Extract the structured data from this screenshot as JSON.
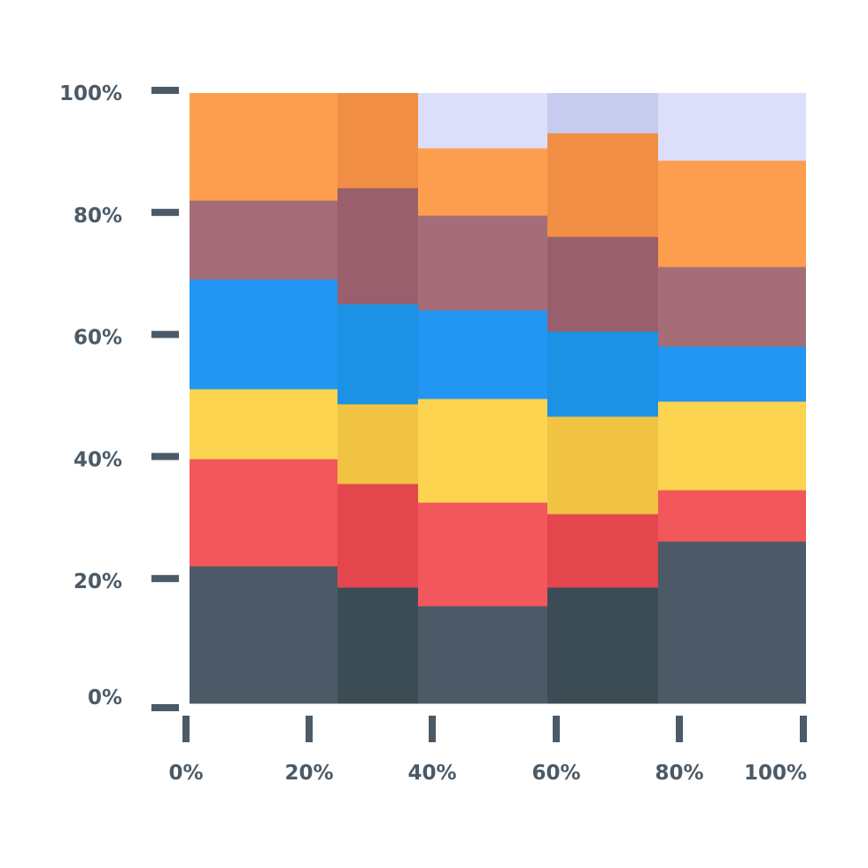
{
  "chart_data": {
    "type": "bar",
    "variant": "marimekko",
    "title": "",
    "xlabel": "",
    "ylabel": "",
    "xlim": [
      0,
      100
    ],
    "ylim": [
      0,
      100
    ],
    "grid": false,
    "legend": "none",
    "x_tick_labels": [
      "0%",
      "20%",
      "40%",
      "60%",
      "80%",
      "100%"
    ],
    "y_tick_labels": [
      "0%",
      "20%",
      "40%",
      "60%",
      "80%",
      "100%"
    ],
    "columns": [
      {
        "x_start": 0,
        "x_end": 24,
        "shade": "light",
        "layers": [
          22.5,
          17.5,
          11.5,
          18,
          13,
          17.5
        ]
      },
      {
        "x_start": 24,
        "x_end": 37,
        "shade": "dark",
        "layers": [
          19,
          17,
          13,
          16.5,
          19,
          15.5
        ]
      },
      {
        "x_start": 37,
        "x_end": 58,
        "shade": "light",
        "layers": [
          16,
          17,
          17,
          14.5,
          15.5,
          11,
          9
        ]
      },
      {
        "x_start": 58,
        "x_end": 76,
        "shade": "dark",
        "layers": [
          19,
          12,
          16,
          14,
          15.5,
          17,
          6.5
        ]
      },
      {
        "x_start": 76,
        "x_end": 100,
        "shade": "light",
        "layers": [
          26.5,
          8.5,
          14.5,
          9,
          13,
          17.5,
          11
        ]
      }
    ],
    "series_colors": {
      "light": [
        "#4b5a66",
        "#f2575b",
        "#fdd44f",
        "#2296f3",
        "#a56d77",
        "#fd9e4e",
        "#dcdff9"
      ],
      "dark": [
        "#3b4c55",
        "#e4464d",
        "#f1c342",
        "#1b92e3",
        "#995f6c",
        "#f08e45",
        "#c7cbed"
      ]
    },
    "axis_color": "#4b5a66"
  }
}
